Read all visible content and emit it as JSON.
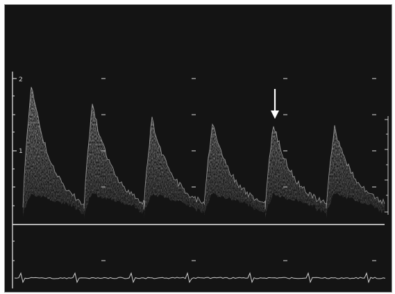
{
  "doppler": {
    "velocity_scale_labels": [
      "2",
      "1"
    ],
    "cardiac_cycles_shown": 6,
    "arrow_marks_cycle": 5,
    "colors": {
      "background": "#141414",
      "signal": "#cfcfcf",
      "baseline": "#e6e6e6",
      "ecg": "#d0d0d0",
      "arrow": "#ffffff"
    }
  }
}
